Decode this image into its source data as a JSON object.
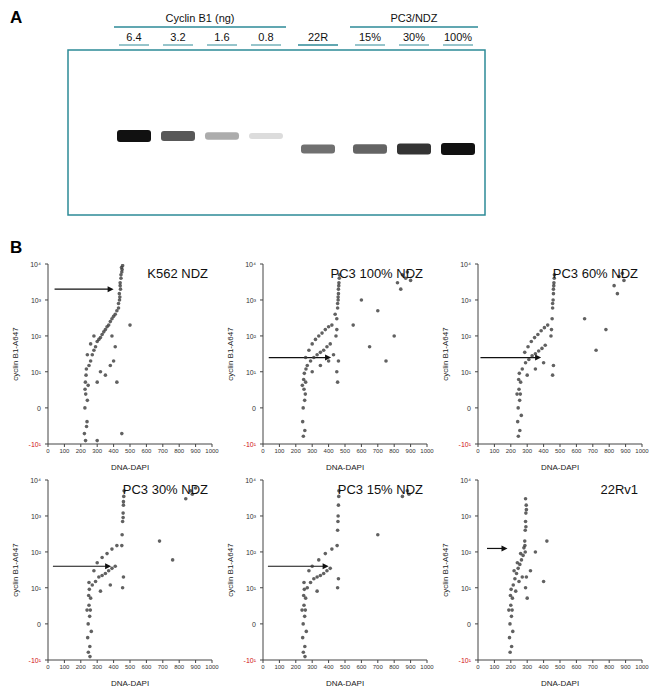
{
  "panel_labels": [
    "A",
    "B"
  ],
  "blot": {
    "groups": [
      {
        "label": "Cyclin B1 (ng)",
        "lanes": [
          {
            "label": "6.4",
            "intensity": 1.0
          },
          {
            "label": "3.2",
            "intensity": 0.7
          },
          {
            "label": "1.6",
            "intensity": 0.35
          },
          {
            "label": "0.8",
            "intensity": 0.15
          }
        ]
      },
      {
        "label": "22R",
        "lanes": [
          {
            "intensity": 0.6
          }
        ]
      },
      {
        "label": "PC3/NDZ",
        "lanes": [
          {
            "label": "15%",
            "intensity": 0.65
          },
          {
            "label": "30%",
            "intensity": 0.85
          },
          {
            "label": "100%",
            "intensity": 1.0
          }
        ]
      }
    ]
  },
  "chart_data": [
    {
      "type": "scatter",
      "title": "K562 NDZ",
      "x_label": "DNA-DAPI",
      "y_label": "cyclin B1-A647",
      "color": "#3a3a3a",
      "xlim": [
        0,
        1000
      ],
      "xticks": [
        0,
        100,
        200,
        300,
        400,
        500,
        600,
        700,
        800,
        900,
        1000
      ],
      "ylim": [
        -10,
        10000
      ],
      "yticks": [
        {
          "value": -10,
          "label": "-10¹"
        },
        0,
        {
          "value": 10,
          "label": "10¹"
        },
        {
          "value": 100,
          "label": "10²"
        },
        {
          "value": 1000,
          "label": "10³"
        },
        {
          "value": 10000,
          "label": "10⁴"
        }
      ],
      "arrow": {
        "x": [
          40,
          400
        ],
        "y": 2000
      },
      "x": [
        225,
        230,
        235,
        228,
        240,
        232,
        222,
        245,
        238,
        226,
        234,
        229,
        250,
        260,
        270,
        280,
        290,
        300,
        310,
        320,
        330,
        340,
        350,
        360,
        370,
        380,
        390,
        400,
        410,
        420,
        300,
        320,
        350,
        380,
        400,
        260,
        280,
        240,
        430,
        435,
        440,
        445,
        450,
        440,
        445,
        438,
        452,
        448,
        442,
        436,
        455,
        430,
        420,
        450,
        300,
        500,
        410,
        390
      ],
      "values": [
        0,
        2,
        -3,
        5,
        1,
        8,
        -5,
        4,
        -2,
        3,
        12,
        -8,
        15,
        20,
        30,
        40,
        50,
        70,
        80,
        90,
        110,
        130,
        150,
        180,
        200,
        250,
        300,
        350,
        400,
        500,
        5,
        10,
        8,
        15,
        20,
        60,
        100,
        30,
        800,
        1500,
        2500,
        4000,
        6000,
        3000,
        5000,
        1200,
        7000,
        8000,
        2000,
        1000,
        9000,
        600,
        5,
        -5,
        -8,
        200,
        50,
        100
      ]
    },
    {
      "type": "scatter",
      "title": "PC3 100% NDZ",
      "x_label": "DNA-DAPI",
      "y_label": "cyclin B1-A647",
      "color": "#3a3a3a",
      "xlim": [
        0,
        1000
      ],
      "xticks": [
        0,
        100,
        200,
        300,
        400,
        500,
        600,
        700,
        800,
        900,
        1000
      ],
      "ylim": [
        -10,
        10000
      ],
      "yticks": [
        {
          "value": -10,
          "label": "-10¹"
        },
        0,
        {
          "value": 10,
          "label": "10¹"
        },
        {
          "value": 100,
          "label": "10²"
        },
        {
          "value": 1000,
          "label": "10³"
        },
        {
          "value": 10000,
          "label": "10⁴"
        }
      ],
      "arrow": {
        "x": [
          35,
          415
        ],
        "y": 25
      },
      "x": [
        245,
        250,
        255,
        248,
        258,
        242,
        252,
        260,
        246,
        254,
        262,
        240,
        270,
        290,
        310,
        330,
        350,
        370,
        390,
        410,
        280,
        300,
        320,
        340,
        360,
        380,
        400,
        420,
        260,
        300,
        350,
        400,
        430,
        450,
        455,
        458,
        460,
        462,
        465,
        455,
        460,
        463,
        458,
        445,
        450,
        466,
        440,
        450,
        455,
        460,
        820,
        850,
        870,
        880,
        840,
        900,
        700,
        600,
        750,
        550,
        650,
        800
      ],
      "values": [
        0,
        3,
        -4,
        6,
        2,
        -2,
        9,
        5,
        -6,
        1,
        12,
        4,
        15,
        20,
        25,
        30,
        35,
        40,
        50,
        60,
        40,
        60,
        80,
        100,
        120,
        150,
        180,
        200,
        25,
        10,
        15,
        20,
        30,
        300,
        600,
        1000,
        1500,
        2500,
        4000,
        800,
        2000,
        3000,
        1200,
        100,
        150,
        5000,
        400,
        10,
        5,
        20,
        3000,
        5000,
        4000,
        6000,
        2000,
        3500,
        500,
        1000,
        20,
        200,
        50,
        100
      ]
    },
    {
      "type": "scatter",
      "title": "PC3 60% NDZ",
      "x_label": "DNA-DAPI",
      "y_label": "cyclin B1-A647",
      "color": "#3a3a3a",
      "xlim": [
        0,
        1000
      ],
      "xticks": [
        0,
        100,
        200,
        300,
        400,
        500,
        600,
        700,
        800,
        900,
        1000
      ],
      "ylim": [
        -10,
        10000
      ],
      "yticks": [
        {
          "value": -10,
          "label": "-10¹"
        },
        0,
        {
          "value": 10,
          "label": "10¹"
        },
        {
          "value": 100,
          "label": "10²"
        },
        {
          "value": 1000,
          "label": "10³"
        },
        {
          "value": 10000,
          "label": "10⁴"
        }
      ],
      "arrow": {
        "x": [
          15,
          385
        ],
        "y": 25
      },
      "x": [
        245,
        250,
        255,
        248,
        258,
        242,
        252,
        260,
        246,
        254,
        238,
        264,
        270,
        290,
        310,
        330,
        350,
        370,
        390,
        410,
        285,
        305,
        325,
        345,
        365,
        385,
        405,
        425,
        300,
        350,
        400,
        452,
        455,
        458,
        460,
        462,
        465,
        455,
        460,
        463,
        448,
        466,
        445,
        455,
        460,
        830,
        860,
        880,
        890,
        850,
        650,
        720,
        780
      ],
      "values": [
        0,
        3,
        -4,
        6,
        2,
        -2,
        9,
        5,
        -6,
        1,
        2,
        -1,
        12,
        18,
        22,
        28,
        32,
        38,
        45,
        55,
        35,
        50,
        70,
        90,
        110,
        140,
        170,
        200,
        8,
        12,
        18,
        300,
        600,
        1000,
        1500,
        2500,
        4000,
        800,
        2000,
        3000,
        150,
        5000,
        100,
        8,
        15,
        2500,
        4500,
        5500,
        3500,
        1500,
        300,
        40,
        150
      ]
    },
    {
      "type": "scatter",
      "title": "PC3 30% NDZ",
      "x_label": "DNA-DAPI",
      "y_label": "cyclin B1-A647",
      "color": "#3a3a3a",
      "xlim": [
        0,
        1000
      ],
      "xticks": [
        0,
        100,
        200,
        300,
        400,
        500,
        600,
        700,
        800,
        900,
        1000
      ],
      "ylim": [
        -10,
        10000
      ],
      "yticks": [
        {
          "value": -10,
          "label": "-10¹"
        },
        0,
        {
          "value": 10,
          "label": "10¹"
        },
        {
          "value": 100,
          "label": "10²"
        },
        {
          "value": 1000,
          "label": "10³"
        },
        {
          "value": 10000,
          "label": "10⁴"
        }
      ],
      "arrow": {
        "x": [
          30,
          385
        ],
        "y": 40
      },
      "x": [
        245,
        250,
        255,
        248,
        258,
        242,
        252,
        260,
        246,
        254,
        238,
        264,
        250,
        256,
        270,
        290,
        310,
        330,
        350,
        370,
        390,
        410,
        300,
        330,
        360,
        390,
        420,
        280,
        320,
        380,
        452,
        455,
        458,
        460,
        462,
        458,
        460,
        450,
        464,
        455,
        460,
        840,
        870,
        880,
        900,
        680,
        760
      ],
      "values": [
        0,
        3,
        -4,
        6,
        2,
        -2,
        9,
        5,
        -6,
        1,
        2,
        -1,
        14,
        -8,
        12,
        15,
        20,
        22,
        25,
        30,
        35,
        40,
        50,
        70,
        90,
        120,
        150,
        30,
        8,
        12,
        300,
        700,
        1200,
        2000,
        3500,
        900,
        2500,
        150,
        5000,
        10,
        20,
        3000,
        5000,
        4000,
        6000,
        200,
        60
      ]
    },
    {
      "type": "scatter",
      "title": "PC3 15% NDZ",
      "x_label": "DNA-DAPI",
      "y_label": "cyclin B1-A647",
      "color": "#3a3a3a",
      "xlim": [
        0,
        1000
      ],
      "xticks": [
        0,
        100,
        200,
        300,
        400,
        500,
        600,
        700,
        800,
        900,
        1000
      ],
      "ylim": [
        -10,
        10000
      ],
      "yticks": [
        {
          "value": -10,
          "label": "-10¹"
        },
        0,
        {
          "value": 10,
          "label": "10¹"
        },
        {
          "value": 100,
          "label": "10²"
        },
        {
          "value": 1000,
          "label": "10³"
        },
        {
          "value": 10000,
          "label": "10⁴"
        }
      ],
      "arrow": {
        "x": [
          30,
          400
        ],
        "y": 40
      },
      "x": [
        245,
        250,
        255,
        248,
        258,
        242,
        252,
        260,
        246,
        254,
        238,
        264,
        250,
        256,
        270,
        290,
        310,
        330,
        350,
        370,
        390,
        410,
        300,
        340,
        380,
        420,
        280,
        330,
        455,
        458,
        460,
        462,
        457,
        452,
        463,
        455,
        460,
        850,
        880,
        890,
        700
      ],
      "values": [
        0,
        3,
        -4,
        6,
        2,
        -2,
        9,
        5,
        -6,
        1,
        2,
        -1,
        14,
        -8,
        10,
        14,
        18,
        20,
        22,
        25,
        30,
        35,
        40,
        60,
        90,
        120,
        30,
        8,
        400,
        1000,
        2000,
        3500,
        700,
        150,
        5000,
        10,
        18,
        3500,
        5000,
        4000,
        300
      ]
    },
    {
      "type": "scatter",
      "title": "22Rv1",
      "x_label": "DNA-DAPI",
      "y_label": "cyclin B1-A647",
      "color": "#3a3a3a",
      "xlim": [
        0,
        1000
      ],
      "xticks": [
        0,
        100,
        200,
        300,
        400,
        500,
        600,
        700,
        800,
        900,
        1000
      ],
      "ylim": [
        -10,
        10000
      ],
      "yticks": [
        {
          "value": -10,
          "label": "-10¹"
        },
        0,
        {
          "value": 10,
          "label": "10¹"
        },
        {
          "value": 100,
          "label": "10²"
        },
        {
          "value": 1000,
          "label": "10³"
        },
        {
          "value": 10000,
          "label": "10⁴"
        }
      ],
      "arrow": {
        "x": [
          55,
          180
        ],
        "y": 125
      },
      "x": [
        195,
        200,
        205,
        198,
        208,
        192,
        202,
        210,
        196,
        204,
        188,
        212,
        215,
        225,
        235,
        245,
        255,
        265,
        275,
        220,
        240,
        260,
        280,
        230,
        250,
        270,
        285,
        288,
        290,
        292,
        294,
        290,
        286,
        292,
        295,
        288,
        290,
        295,
        300,
        320,
        350,
        400,
        420
      ],
      "values": [
        0,
        3,
        -4,
        6,
        2,
        -2,
        9,
        5,
        -6,
        1,
        2,
        -1,
        12,
        18,
        25,
        35,
        45,
        60,
        80,
        30,
        50,
        90,
        130,
        8,
        15,
        20,
        200,
        400,
        700,
        1200,
        2000,
        3000,
        150,
        500,
        1500,
        100,
        10,
        20,
        5,
        30,
        100,
        15,
        200
      ]
    }
  ]
}
